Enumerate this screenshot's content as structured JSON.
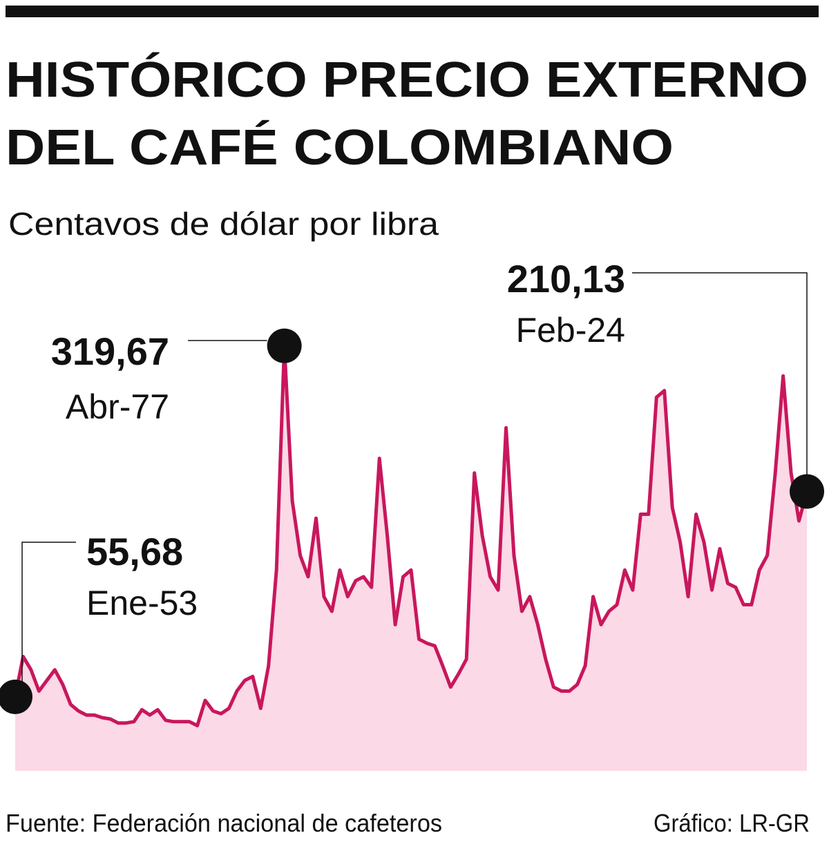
{
  "chart_data": {
    "type": "line",
    "title": "HISTÓRICO PRECIO EXTERNO",
    "title_line2": "DEL CAFÉ COLOMBIANO",
    "subtitle": "Centavos de dólar por libra",
    "source": "Fuente: Federación nacional de cafeteros",
    "credit": "Gráfico: LR-GR",
    "color": "#c8175d",
    "fill": "#fbd9e6",
    "ylim": [
      0,
      360
    ],
    "categories": [
      "Ene-53",
      null,
      null,
      null,
      null,
      null,
      null,
      null,
      null,
      null,
      null,
      null,
      null,
      null,
      null,
      null,
      null,
      null,
      null,
      null,
      null,
      null,
      null,
      null,
      null,
      null,
      null,
      null,
      null,
      null,
      null,
      null,
      null,
      null,
      "Abr-77",
      null,
      null,
      null,
      null,
      null,
      null,
      null,
      null,
      null,
      null,
      null,
      null,
      null,
      null,
      null,
      null,
      null,
      null,
      null,
      null,
      null,
      null,
      null,
      null,
      null,
      null,
      null,
      null,
      null,
      null,
      null,
      null,
      null,
      null,
      null,
      null,
      null,
      null,
      null,
      null,
      null,
      null,
      null,
      null,
      null,
      null,
      null,
      null,
      null,
      null,
      null,
      null,
      null,
      null,
      null,
      null,
      null,
      null,
      null,
      null,
      null,
      null,
      null,
      null,
      null,
      "Feb-24"
    ],
    "values": [
      55.68,
      86,
      76,
      60,
      68,
      76,
      65,
      50,
      45,
      42,
      42,
      40,
      39,
      36,
      36,
      37,
      46,
      42,
      46,
      38,
      37,
      37,
      37,
      34,
      53,
      45,
      43,
      47,
      60,
      68,
      71,
      47,
      79,
      151,
      319.67,
      203,
      162,
      146,
      190,
      131,
      120,
      151,
      131,
      143,
      146,
      138,
      235,
      177,
      110,
      146,
      151,
      99,
      96,
      94,
      79,
      63,
      73,
      84,
      224,
      177,
      146,
      136,
      258,
      162,
      120,
      131,
      110,
      84,
      63,
      60,
      60,
      65,
      79,
      131,
      110,
      120,
      125,
      151,
      136,
      193,
      193,
      281,
      286,
      198,
      172,
      131,
      193,
      172,
      136,
      167,
      141,
      138,
      125,
      125,
      151,
      162,
      224,
      297,
      224,
      188,
      210.13
    ],
    "value_labels": [
      "55,68",
      null,
      null,
      null,
      null,
      null,
      null,
      null,
      null,
      null,
      null,
      null,
      null,
      null,
      null,
      null,
      null,
      null,
      null,
      null,
      null,
      null,
      null,
      null,
      null,
      null,
      null,
      null,
      null,
      null,
      null,
      null,
      null,
      null,
      "319,67",
      null,
      null,
      null,
      null,
      null,
      null,
      null,
      null,
      null,
      null,
      null,
      null,
      null,
      null,
      null,
      null,
      null,
      null,
      null,
      null,
      null,
      null,
      null,
      null,
      null,
      null,
      null,
      null,
      null,
      null,
      null,
      null,
      null,
      null,
      null,
      null,
      null,
      null,
      null,
      null,
      null,
      null,
      null,
      null,
      null,
      null,
      null,
      null,
      null,
      null,
      null,
      null,
      null,
      null,
      null,
      null,
      null,
      null,
      null,
      null,
      null,
      null,
      null,
      null,
      null,
      "210,13"
    ]
  }
}
